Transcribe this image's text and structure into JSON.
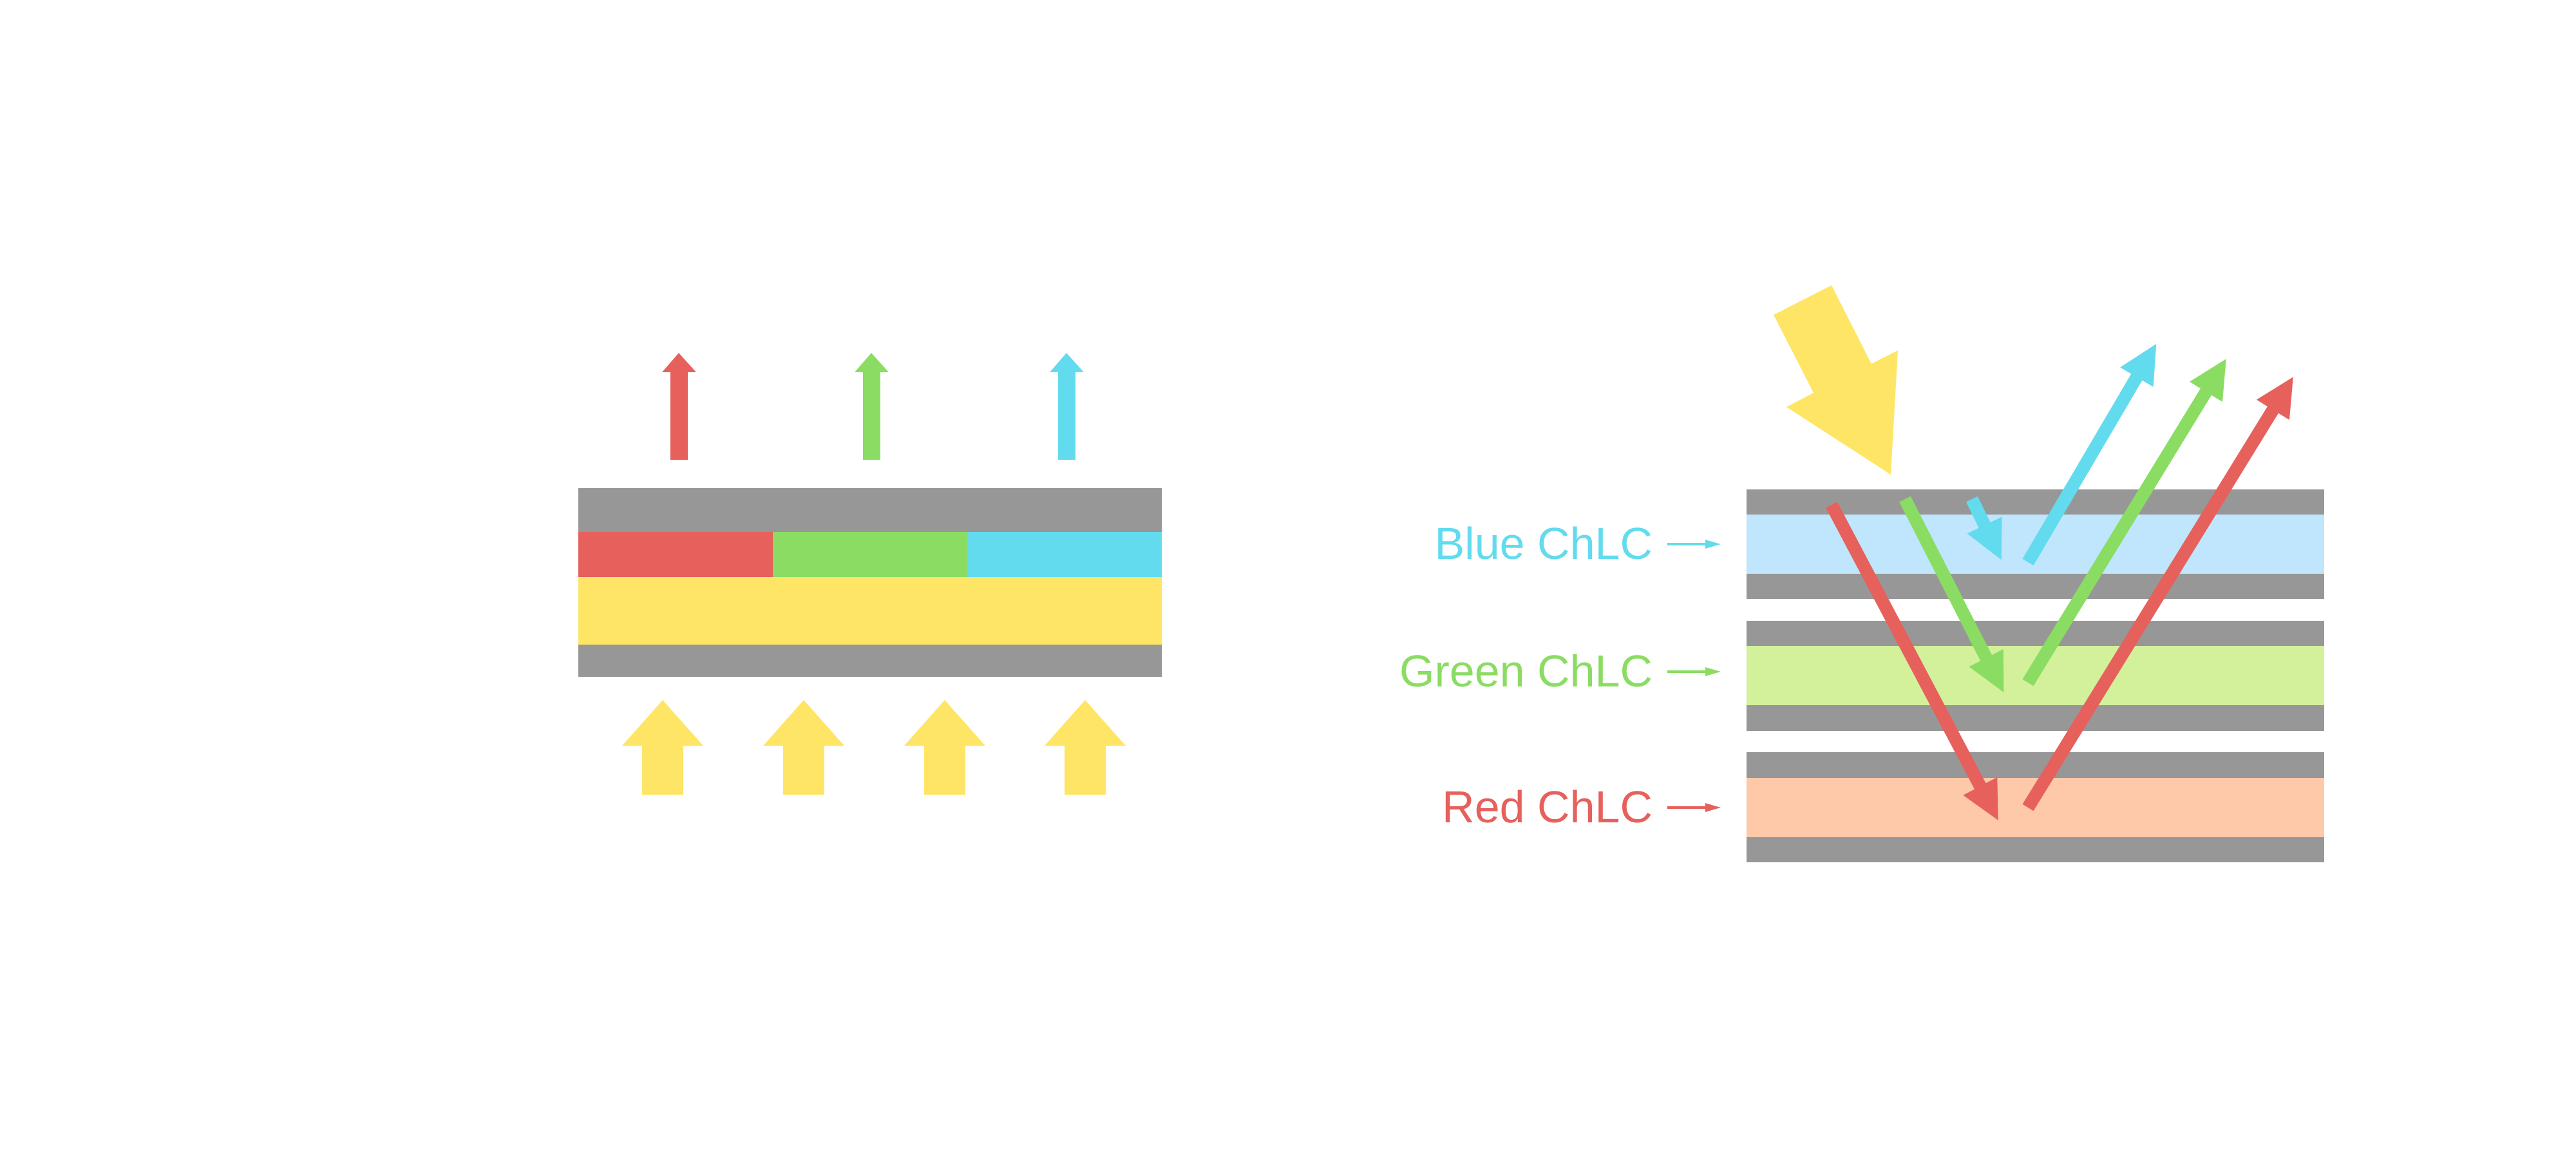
{
  "colors": {
    "red": "#e6605c",
    "green": "#8adc62",
    "blue": "#63dbee",
    "yellow": "#fee566",
    "gray": "#979797",
    "blue_layer": "#bfe6fd",
    "green_layer": "#d3f09a",
    "red_layer": "#fdc9a9"
  },
  "right_diagram": {
    "labels": [
      {
        "text": "Blue ChLC",
        "color": "#63dbee"
      },
      {
        "text": "Green ChLC",
        "color": "#8adc62"
      },
      {
        "text": "Red ChLC",
        "color": "#e6605c"
      }
    ]
  }
}
